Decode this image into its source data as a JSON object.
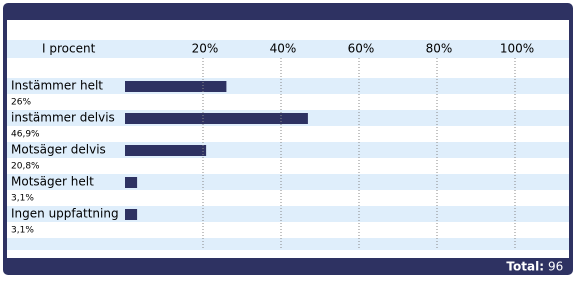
{
  "chart_data": {
    "type": "bar",
    "orientation": "horizontal",
    "header": "I procent",
    "categories": [
      "Instämmer helt",
      "instämmer delvis",
      "Motsäger delvis",
      "Motsäger helt",
      "Ingen uppfattning"
    ],
    "values": [
      26,
      46.9,
      20.8,
      3.1,
      3.1
    ],
    "value_labels": [
      "26%",
      "46,9%",
      "20,8%",
      "3,1%",
      "3,1%"
    ],
    "color": "#2e3262",
    "xlim": [
      0,
      100
    ],
    "xticks": [
      {
        "value": 20,
        "label": "20%"
      },
      {
        "value": 40,
        "label": "40%"
      },
      {
        "value": 60,
        "label": "60%"
      },
      {
        "value": 80,
        "label": "80%"
      },
      {
        "value": 100,
        "label": "100%"
      }
    ],
    "grid": true,
    "total_label": "Total:",
    "total": 96
  }
}
